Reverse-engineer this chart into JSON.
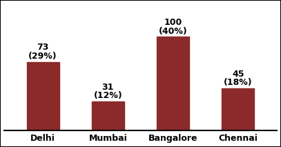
{
  "categories": [
    "Delhi",
    "Mumbai",
    "Bangalore",
    "Chennai"
  ],
  "values": [
    73,
    31,
    100,
    45
  ],
  "percentages": [
    "(29%)",
    "(12%)",
    "(40%)",
    "(18%)"
  ],
  "bar_color": "#8B2A2A",
  "background_color": "#FFFFFF",
  "border_color": "#000000",
  "label_fontsize": 9,
  "tick_fontsize": 9,
  "ylim": [
    0,
    135
  ],
  "bar_width": 0.5
}
